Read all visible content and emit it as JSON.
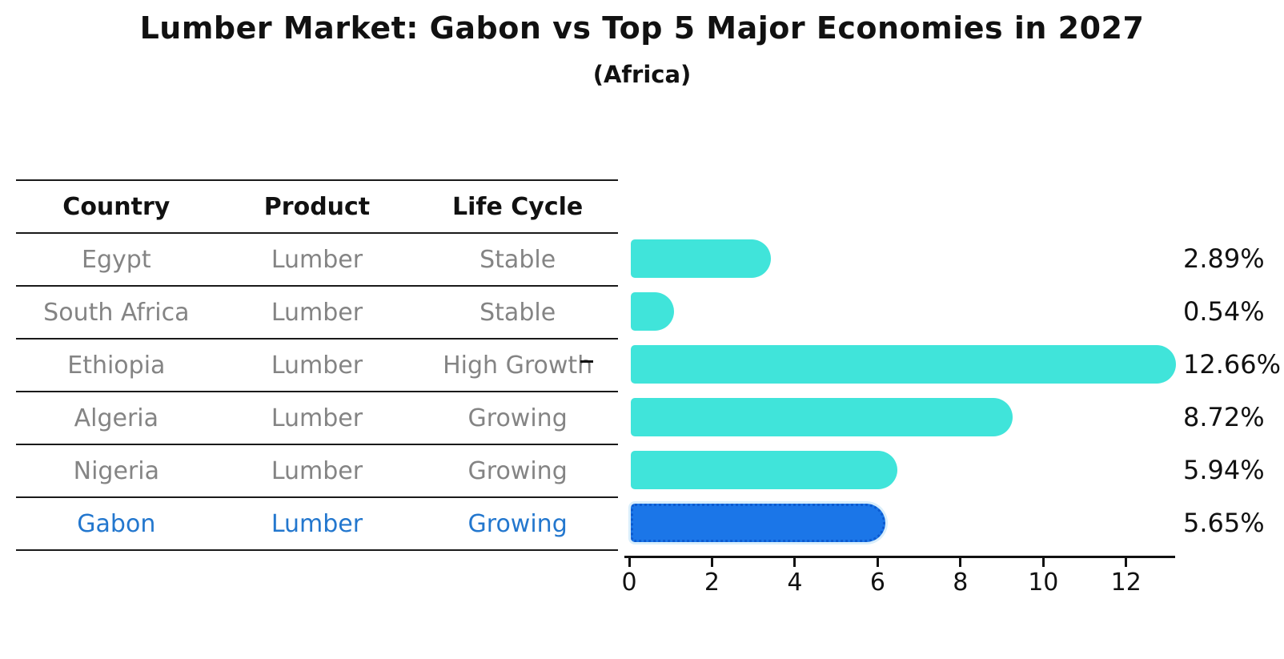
{
  "title": "Lumber Market: Gabon vs Top 5 Major Economies in 2027",
  "subtitle": "(Africa)",
  "table": {
    "headers": [
      "Country",
      "Product",
      "Life Cycle"
    ],
    "rows": [
      {
        "country": "Egypt",
        "product": "Lumber",
        "life_cycle": "Stable"
      },
      {
        "country": "South Africa",
        "product": "Lumber",
        "life_cycle": "Stable"
      },
      {
        "country": "Ethiopia",
        "product": "Lumber",
        "life_cycle": "High Growth"
      },
      {
        "country": "Algeria",
        "product": "Lumber",
        "life_cycle": "Growing"
      },
      {
        "country": "Nigeria",
        "product": "Lumber",
        "life_cycle": "Growing"
      },
      {
        "country": "Gabon",
        "product": "Lumber",
        "life_cycle": "Growing"
      }
    ],
    "highlight_row": "Gabon"
  },
  "chart_data": {
    "type": "bar",
    "orientation": "horizontal",
    "title": "Lumber Market: Gabon vs Top 5 Major Economies in 2027",
    "subtitle": "(Africa)",
    "categories": [
      "Egypt",
      "South Africa",
      "Ethiopia",
      "Algeria",
      "Nigeria",
      "Gabon"
    ],
    "values": [
      2.89,
      0.54,
      12.66,
      8.72,
      5.94,
      5.65
    ],
    "value_labels": [
      "2.89%",
      "0.54%",
      "12.66%",
      "8.72%",
      "5.94%",
      "5.65%"
    ],
    "xlim": [
      0,
      13.3
    ],
    "xticks": [
      0,
      2,
      4,
      6,
      8,
      10,
      12
    ],
    "grid": false,
    "legend": false,
    "highlight_index": 5,
    "bar_color": "#40E4DA",
    "highlight_color": "#1B76E8",
    "text_highlight_color": "#2377CE"
  }
}
